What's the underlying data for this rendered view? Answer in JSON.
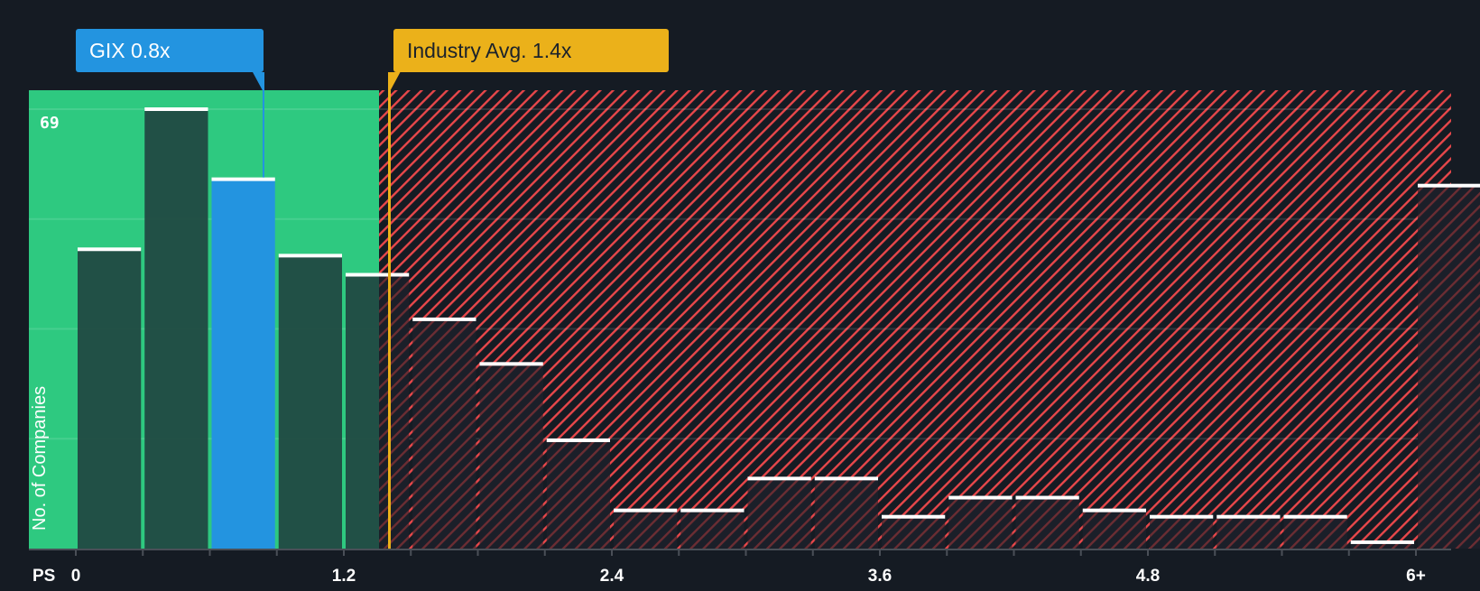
{
  "callouts": {
    "company": {
      "label": "GIX 0.8x",
      "color": "#2394e0"
    },
    "industry": {
      "label": "Industry Avg. 1.4x",
      "color": "#ebb11a"
    }
  },
  "axis": {
    "y_label": "No. of Companies",
    "y_max_label": "69",
    "x_prefix": "PS",
    "x_ticks": [
      "0",
      "1.2",
      "2.4",
      "3.6",
      "4.8",
      "6+"
    ]
  },
  "colors": {
    "background": "#151b23",
    "undervalued_zone": "#2ec980",
    "overvalued_hatch": "#e8474a",
    "bar_default": "#214a42",
    "bar_company": "#2394e0",
    "bar_cap": "#ffffff"
  },
  "chart_data": {
    "type": "bar",
    "title": "",
    "xlabel": "PS",
    "ylabel": "No. of Companies",
    "categories": [
      "0-0.3",
      "0.3-0.6",
      "0.6-0.9",
      "0.9-1.2",
      "1.2-1.5",
      "1.5-1.8",
      "1.8-2.1",
      "2.1-2.4",
      "2.4-2.7",
      "2.7-3.0",
      "3.0-3.3",
      "3.3-3.6",
      "3.6-3.9",
      "3.9-4.2",
      "4.2-4.5",
      "4.5-4.8",
      "4.8-5.1",
      "5.1-5.4",
      "5.4-5.7",
      "5.7-6.0",
      "6+"
    ],
    "values": [
      47,
      69,
      58,
      46,
      43,
      36,
      29,
      17,
      6,
      6,
      11,
      11,
      5,
      8,
      8,
      6,
      5,
      5,
      5,
      1,
      57
    ],
    "highlight_index": 2,
    "company": {
      "name": "GIX",
      "value": 0.8
    },
    "industry_average": 1.4,
    "ylim": [
      0,
      69
    ],
    "x_tick_labels": [
      "0",
      "1.2",
      "2.4",
      "3.6",
      "4.8",
      "6+"
    ],
    "grid": true,
    "legend": "none"
  }
}
